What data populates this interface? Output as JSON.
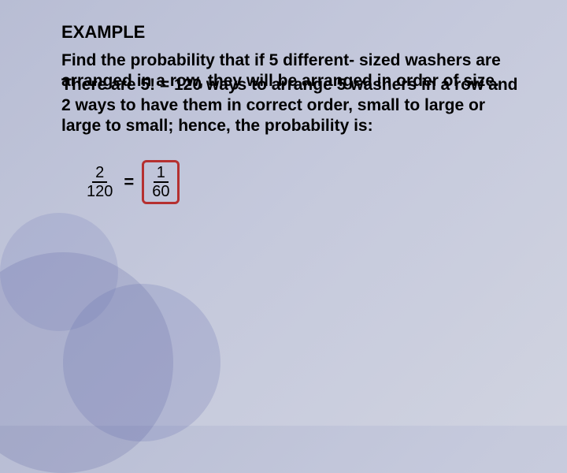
{
  "title": "EXAMPLE",
  "prompt": "Find the probability that if 5 different- sized washers are arranged in a row, they will be arranged in order of size.",
  "solution": "There are 5! =  120 ways to arrange 5 washers in a row and 2 ways to have them in correct order, small to large or large to small;  hence, the probability is:",
  "equation": {
    "left_num": "2",
    "left_den": "120",
    "eq": "=",
    "right_num": "1",
    "right_den": "60"
  },
  "colors": {
    "box_border": "#b53030",
    "text": "#000000",
    "bg_gradient_start": "#b8bdd4",
    "bg_gradient_end": "#d0d3e0"
  }
}
